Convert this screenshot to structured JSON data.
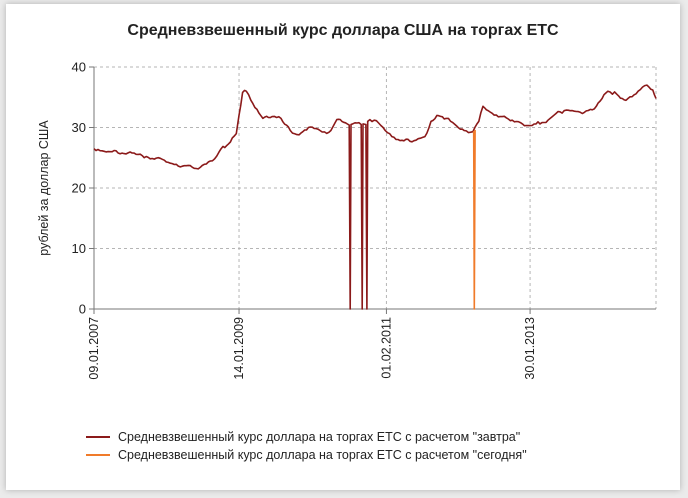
{
  "colors": {
    "tomorrow": "#8b1a1a",
    "today": "#f07b2a",
    "grid": "#b5b5b5",
    "axis": "#777777"
  },
  "chart_data": {
    "type": "line",
    "title": "Средневзвешенный курс доллара США на торгах ЕТС",
    "ylabel": "рублей за доллар США",
    "xlabel": "",
    "ylim": [
      0,
      40
    ],
    "yticks": [
      0,
      10,
      20,
      30,
      40
    ],
    "xlim": [
      "2007-01-09",
      "2014-10-31"
    ],
    "xtick_labels": [
      "09.01.2007",
      "14.01.2009",
      "01.02.2011",
      "30.01.2013"
    ],
    "grid": true,
    "legend_position": "bottom",
    "series": [
      {
        "name": "Средневзвешенный курс доллара на торгах ЕТС с расчетом \"завтра\"",
        "color": "#8b1a1a",
        "points": [
          [
            "2007-01-09",
            26.5
          ],
          [
            "2007-04-01",
            26.0
          ],
          [
            "2007-07-01",
            25.8
          ],
          [
            "2007-10-01",
            25.2
          ],
          [
            "2008-01-01",
            24.6
          ],
          [
            "2008-04-01",
            23.6
          ],
          [
            "2008-07-01",
            23.4
          ],
          [
            "2008-09-01",
            24.5
          ],
          [
            "2008-10-15",
            26.5
          ],
          [
            "2008-12-01",
            27.6
          ],
          [
            "2008-12-31",
            29.0
          ],
          [
            "2009-01-14",
            32.0
          ],
          [
            "2009-02-01",
            35.8
          ],
          [
            "2009-02-20",
            36.0
          ],
          [
            "2009-03-15",
            34.5
          ],
          [
            "2009-04-15",
            33.0
          ],
          [
            "2009-05-15",
            31.5
          ],
          [
            "2009-07-01",
            31.8
          ],
          [
            "2009-08-15",
            31.5
          ],
          [
            "2009-10-01",
            29.5
          ],
          [
            "2009-11-15",
            28.8
          ],
          [
            "2010-01-01",
            30.0
          ],
          [
            "2010-03-01",
            29.5
          ],
          [
            "2010-04-15",
            29.2
          ],
          [
            "2010-05-25",
            31.3
          ],
          [
            "2010-06-20",
            31.0
          ],
          [
            "2010-07-27",
            30.4
          ],
          [
            "2010-08-01",
            0.0
          ],
          [
            "2010-08-05",
            30.5
          ],
          [
            "2010-09-15",
            30.8
          ],
          [
            "2010-09-26",
            30.5
          ],
          [
            "2010-10-01",
            0.0
          ],
          [
            "2010-10-05",
            30.6
          ],
          [
            "2010-10-20",
            30.5
          ],
          [
            "2010-10-25",
            0.0
          ],
          [
            "2010-10-29",
            31.0
          ],
          [
            "2010-12-01",
            31.2
          ],
          [
            "2011-01-15",
            30.0
          ],
          [
            "2011-03-01",
            28.5
          ],
          [
            "2011-05-01",
            27.8
          ],
          [
            "2011-07-01",
            27.9
          ],
          [
            "2011-08-15",
            28.5
          ],
          [
            "2011-09-15",
            31.0
          ],
          [
            "2011-10-15",
            32.0
          ],
          [
            "2011-12-01",
            31.5
          ],
          [
            "2012-01-15",
            30.5
          ],
          [
            "2012-03-01",
            29.5
          ],
          [
            "2012-04-15",
            29.3
          ],
          [
            "2012-05-15",
            31.0
          ],
          [
            "2012-06-05",
            33.5
          ],
          [
            "2012-07-01",
            32.8
          ],
          [
            "2012-09-01",
            31.8
          ],
          [
            "2012-11-01",
            31.2
          ],
          [
            "2013-01-01",
            30.3
          ],
          [
            "2013-03-01",
            30.6
          ],
          [
            "2013-05-01",
            31.2
          ],
          [
            "2013-07-01",
            32.6
          ],
          [
            "2013-09-01",
            32.8
          ],
          [
            "2013-11-01",
            32.5
          ],
          [
            "2014-01-01",
            33.5
          ],
          [
            "2014-03-01",
            36.0
          ],
          [
            "2014-04-15",
            35.5
          ],
          [
            "2014-06-01",
            34.5
          ],
          [
            "2014-08-01",
            36.0
          ],
          [
            "2014-09-15",
            37.0
          ],
          [
            "2014-10-15",
            36.2
          ],
          [
            "2014-10-31",
            34.8
          ]
        ]
      },
      {
        "name": "Средневзвешенный курс доллара на торгах ЕТС с расчетом \"сегодня\"",
        "color": "#f07b2a",
        "points": [
          [
            "2012-04-19",
            29.4
          ],
          [
            "2012-04-22",
            0.0
          ],
          [
            "2012-04-26",
            29.6
          ]
        ]
      }
    ]
  }
}
